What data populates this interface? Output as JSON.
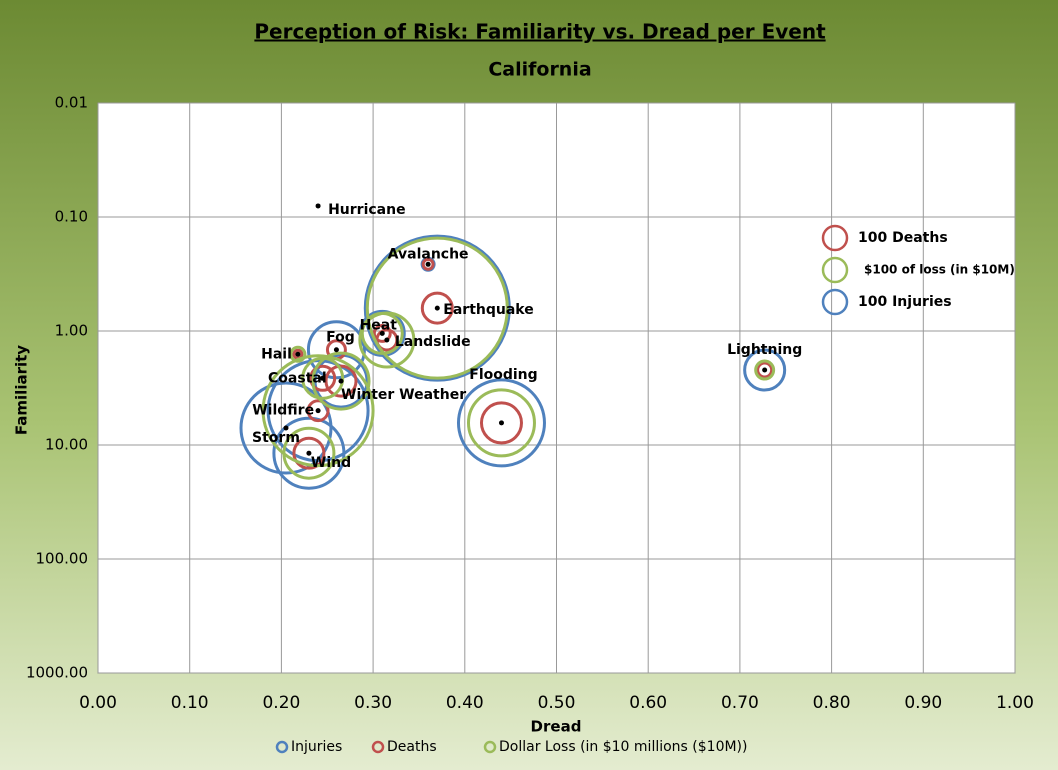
{
  "chart_data": {
    "type": "bubble",
    "title": "Perception of Risk: Familiarity vs. Dread per Event",
    "subtitle": "California",
    "xlabel": "Dread",
    "ylabel": "Familiarity",
    "labels": [
      "Hurricane",
      "Avalanche",
      "Earthquake",
      "Heat",
      "Landslide",
      "Fog",
      "Hail",
      "Lightning",
      "Coastal",
      "Winter Weather",
      "Wildfire",
      "Storm",
      "Wind",
      "Flooding"
    ],
    "x": [
      0.24,
      0.36,
      0.37,
      0.31,
      0.315,
      0.26,
      0.218,
      0.727,
      0.245,
      0.265,
      0.24,
      0.205,
      0.23,
      0.44
    ],
    "y": [
      0.08,
      0.26,
      0.63,
      1.05,
      1.2,
      1.46,
      1.6,
      2.2,
      2.6,
      2.75,
      5.0,
      7.1,
      11.8,
      6.4
    ],
    "series": [
      {
        "name": "Injuries",
        "color": "#4f81bd",
        "sizes": [
          null,
          25,
          3600,
          336,
          null,
          544,
          null,
          278,
          null,
          469,
          1736,
          1406,
          851,
          1284
        ]
      },
      {
        "name": "Deaths",
        "color": "#c0504d",
        "sizes": [
          null,
          17,
          156,
          44,
          69,
          56,
          11,
          34,
          100,
          156,
          69,
          null,
          156,
          278
        ]
      },
      {
        "name": "Dollar Loss (in $10 millions ($10M))",
        "color": "#9bbb59",
        "sizes": [
          null,
          null,
          3403,
          278,
          506,
          null,
          34,
          56,
          278,
          544,
          2100,
          null,
          434,
          756
        ]
      }
    ],
    "size_legend": [
      {
        "label": "100 Deaths",
        "color": "#c0504d",
        "size": 100
      },
      {
        "label": "$100 of loss (in $10M)",
        "color": "#9bbb59",
        "size": 100
      },
      {
        "label": "100 Injuries",
        "color": "#4f81bd",
        "size": 100
      }
    ],
    "xlim": [
      0,
      1
    ],
    "xticks": [
      {
        "value": 0,
        "label": "0.00"
      },
      {
        "value": 0.1,
        "label": "0.10"
      },
      {
        "value": 0.2,
        "label": "0.20"
      },
      {
        "value": 0.3,
        "label": "0.30"
      },
      {
        "value": 0.4,
        "label": "0.40"
      },
      {
        "value": 0.5,
        "label": "0.50"
      },
      {
        "value": 0.6,
        "label": "0.60"
      },
      {
        "value": 0.7,
        "label": "0.70"
      },
      {
        "value": 0.8,
        "label": "0.80"
      },
      {
        "value": 0.9,
        "label": "0.90"
      },
      {
        "value": 1,
        "label": "1.00"
      }
    ],
    "ylim": [
      0.01,
      1000
    ],
    "yticks": [
      {
        "value": 0.01,
        "label": "0.01"
      },
      {
        "value": 0.1,
        "label": "0.10"
      },
      {
        "value": 1,
        "label": "1.00"
      },
      {
        "value": 10,
        "label": "10.00"
      },
      {
        "value": 100,
        "label": "100.00"
      },
      {
        "value": 1000,
        "label": "1000.00"
      }
    ],
    "ylog": true,
    "yreversed": true,
    "grid": true
  }
}
